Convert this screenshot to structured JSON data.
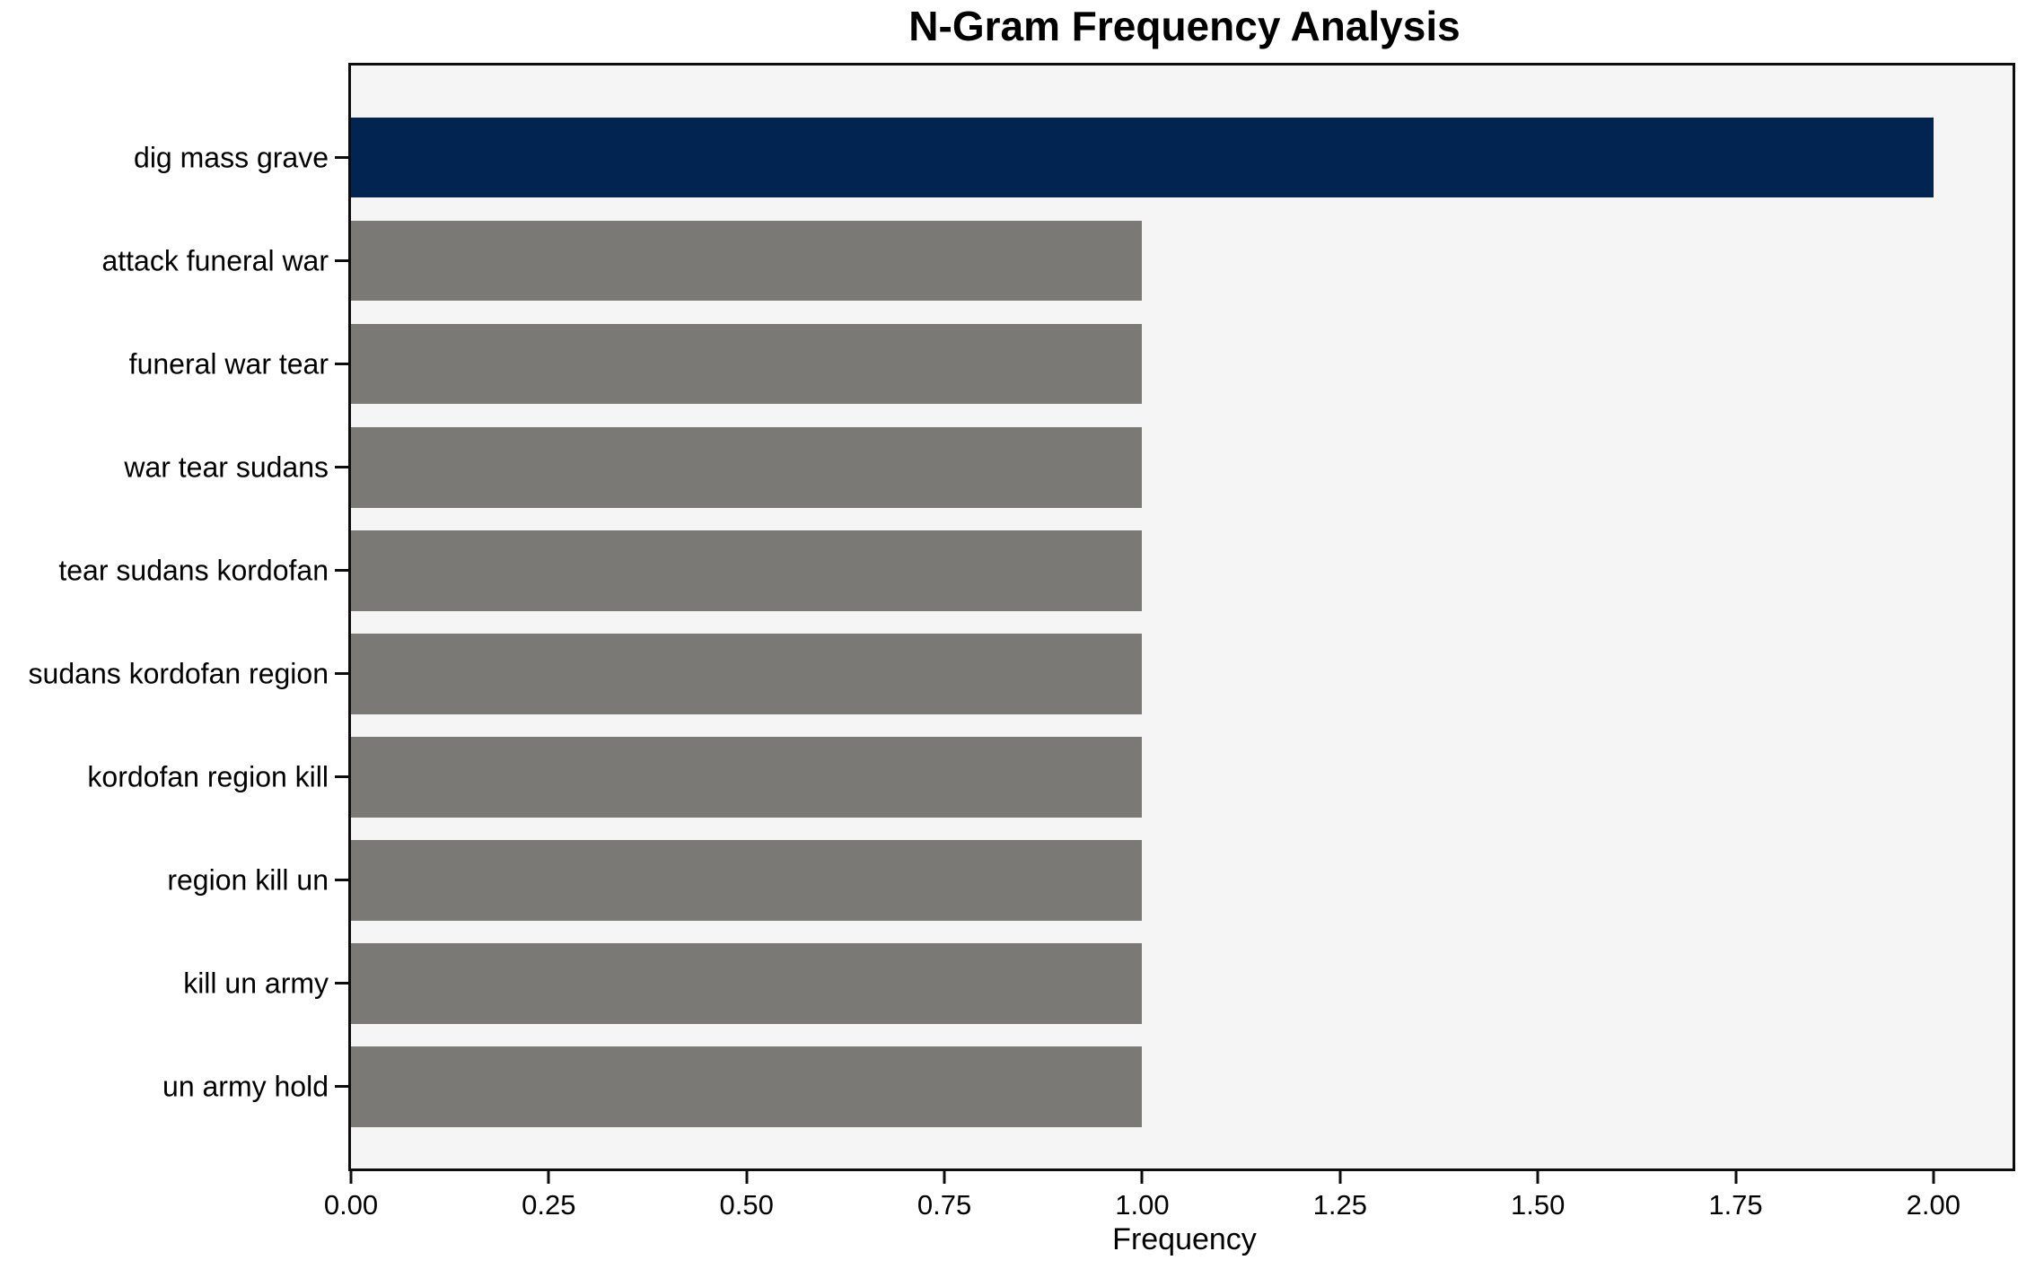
{
  "chart_data": {
    "type": "bar",
    "orientation": "horizontal",
    "title": "N-Gram Frequency Analysis",
    "xlabel": "Frequency",
    "ylabel": "",
    "categories": [
      "dig mass grave",
      "attack funeral war",
      "funeral war tear",
      "war tear sudans",
      "tear sudans kordofan",
      "sudans kordofan region",
      "kordofan region kill",
      "region kill un",
      "kill un army",
      "un army hold"
    ],
    "values": [
      2,
      1,
      1,
      1,
      1,
      1,
      1,
      1,
      1,
      1
    ],
    "bar_colors": [
      "#022450",
      "#7a7975",
      "#7a7975",
      "#7a7975",
      "#7a7975",
      "#7a7975",
      "#7a7975",
      "#7a7975",
      "#7a7975",
      "#7a7975"
    ],
    "xlim": [
      0,
      2.1
    ],
    "xticks": [
      0.0,
      0.25,
      0.5,
      0.75,
      1.0,
      1.25,
      1.5,
      1.75,
      2.0
    ],
    "xtick_labels": [
      "0.00",
      "0.25",
      "0.50",
      "0.75",
      "1.00",
      "1.25",
      "1.50",
      "1.75",
      "2.00"
    ],
    "grid": false,
    "legend_position": "none",
    "colors": {
      "highlight_bar": "#022450",
      "default_bar": "#7a7975",
      "plot_background": "#f5f5f6",
      "figure_background": "#ffffff",
      "spine": "#0d0d0d",
      "text": "#000000"
    }
  }
}
